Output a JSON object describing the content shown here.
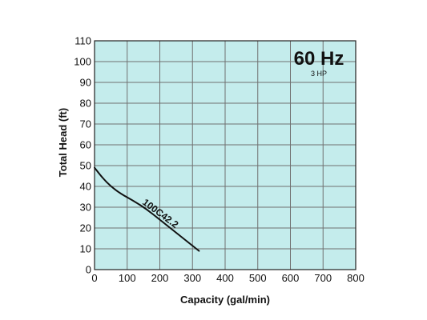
{
  "chart_data": {
    "type": "line",
    "frequency_label": "60 Hz",
    "power_label": "3 HP",
    "xlabel": "Capacity (gal/min)",
    "ylabel": "Total Head (ft)",
    "xlim": [
      0,
      800
    ],
    "ylim": [
      0,
      110
    ],
    "xticks": [
      0,
      100,
      200,
      300,
      400,
      500,
      600,
      700,
      800
    ],
    "yticks": [
      0,
      10,
      20,
      30,
      40,
      50,
      60,
      70,
      80,
      90,
      100,
      110
    ],
    "grid": true,
    "background_color": "#c4ecec",
    "grid_color": "#707070",
    "series": [
      {
        "name": "100C42.2",
        "color": "#111111",
        "points": [
          [
            0,
            49
          ],
          [
            25,
            44
          ],
          [
            50,
            40
          ],
          [
            80,
            36.5
          ],
          [
            120,
            33
          ],
          [
            160,
            29
          ],
          [
            200,
            24
          ],
          [
            240,
            19
          ],
          [
            280,
            14
          ],
          [
            320,
            9
          ]
        ]
      }
    ]
  }
}
